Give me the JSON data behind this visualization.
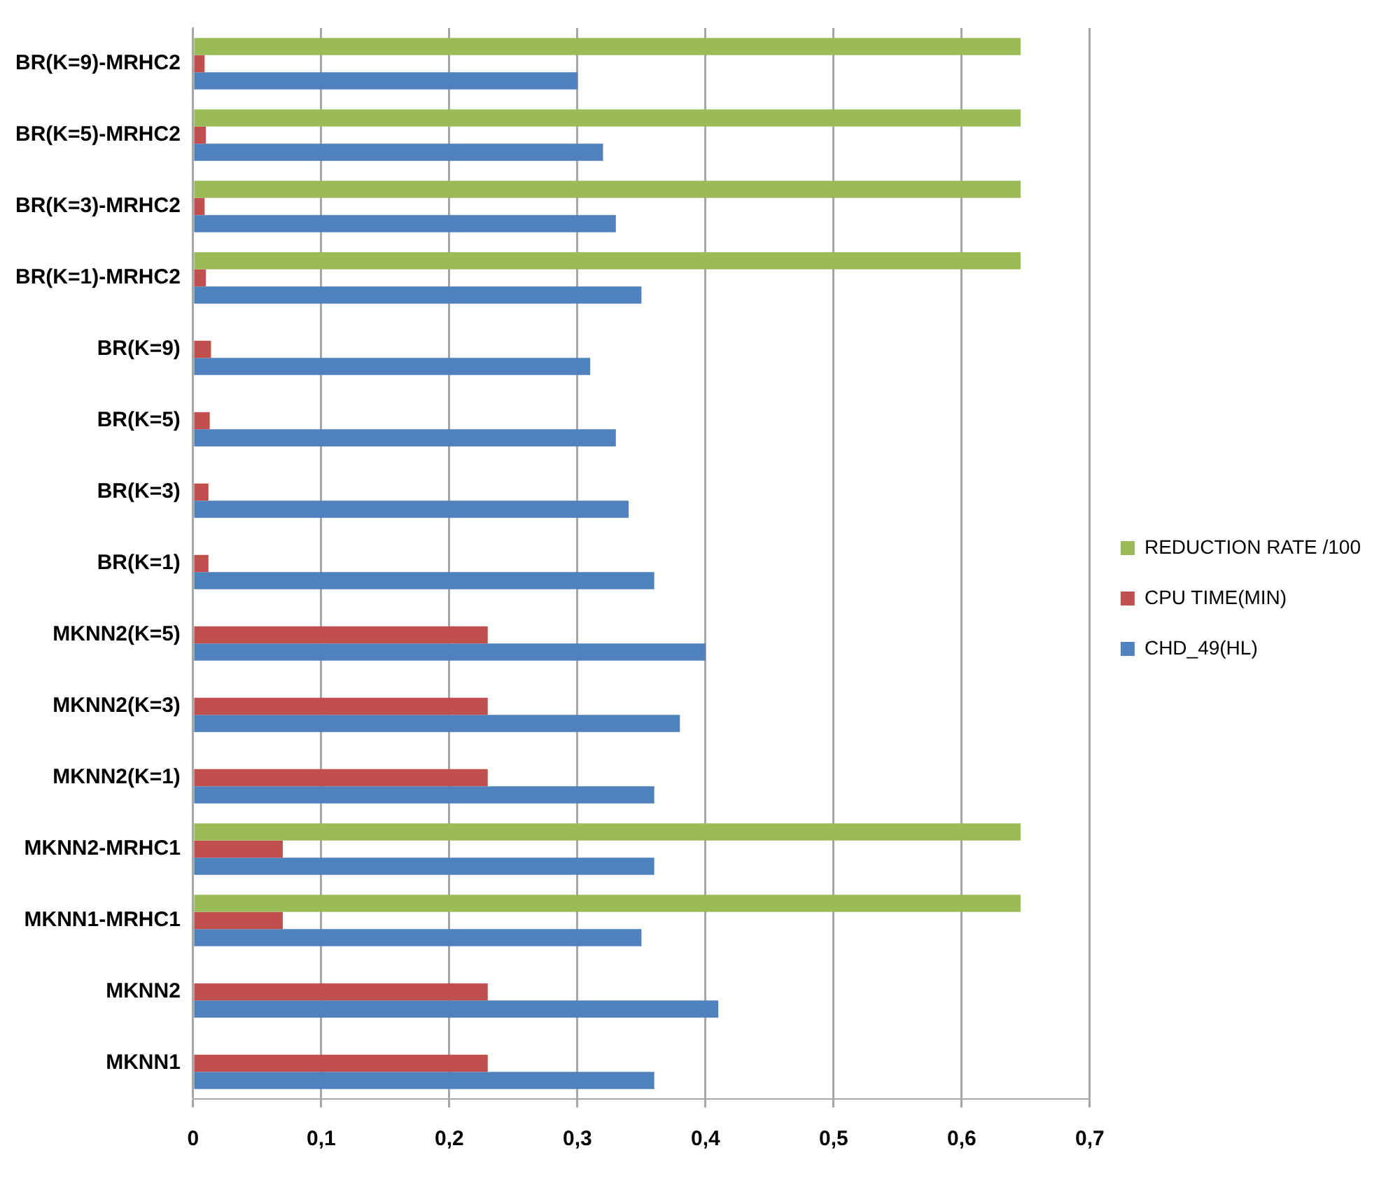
{
  "chart_data": {
    "type": "bar",
    "orientation": "horizontal",
    "categories": [
      "BR(K=9)-MRHC2",
      "BR(K=5)-MRHC2",
      "BR(K=3)-MRHC2",
      "BR(K=1)-MRHC2",
      "BR(K=9)",
      "BR(K=5)",
      "BR(K=3)",
      "BR(K=1)",
      "MKNN2(K=5)",
      "MKNN2(K=3)",
      "MKNN2(K=1)",
      "MKNN2-MRHC1",
      "MKNN1-MRHC1",
      "MKNN2",
      "MKNN1"
    ],
    "series": [
      {
        "name": "REDUCTION RATE /100",
        "color": "#9bbb59",
        "values": [
          0.646,
          0.646,
          0.646,
          0.646,
          null,
          null,
          null,
          null,
          null,
          null,
          null,
          0.646,
          0.646,
          null,
          null
        ]
      },
      {
        "name": "CPU TIME(MIN)",
        "color": "#c0504d",
        "values": [
          0.009,
          0.01,
          0.009,
          0.01,
          0.014,
          0.013,
          0.012,
          0.012,
          0.23,
          0.23,
          0.23,
          0.07,
          0.07,
          0.23,
          0.23
        ]
      },
      {
        "name": "CHD_49(HL)",
        "color": "#4f81bd",
        "values": [
          0.3,
          0.32,
          0.33,
          0.35,
          0.31,
          0.33,
          0.34,
          0.36,
          0.4,
          0.38,
          0.36,
          0.36,
          0.35,
          0.41,
          0.36
        ]
      }
    ],
    "xlim": [
      0,
      0.7
    ],
    "xticks": [
      0,
      {
        "value": 0.1,
        "label": "0,1"
      },
      {
        "value": 0.2,
        "label": "0,2"
      },
      {
        "value": 0.3,
        "label": "0,3"
      },
      {
        "value": 0.4,
        "label": "0,4"
      },
      {
        "value": 0.5,
        "label": "0,5"
      },
      {
        "value": 0.6,
        "label": "0,6"
      },
      {
        "value": 0.7,
        "label": "0,7"
      }
    ],
    "grid": "x",
    "legend": "right"
  }
}
